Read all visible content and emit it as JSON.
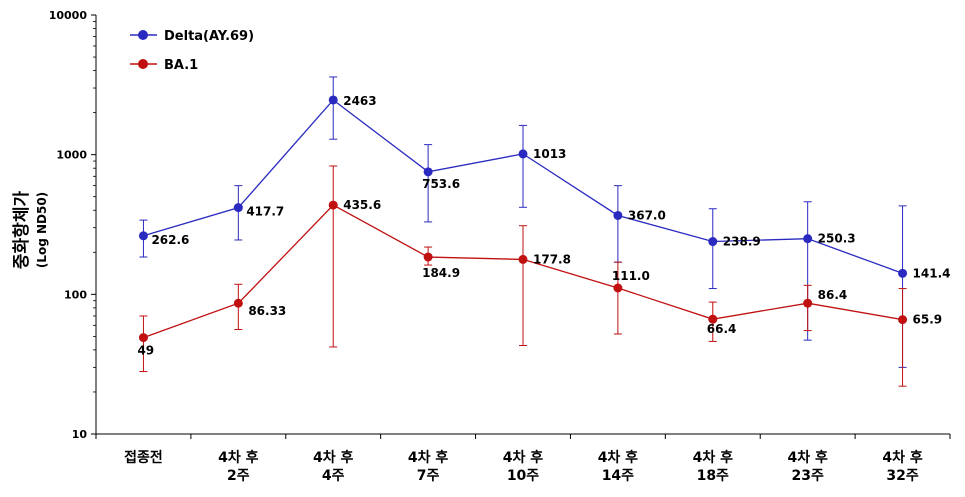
{
  "chart_data": {
    "type": "line",
    "yscale": "log",
    "ylim": [
      10,
      10000
    ],
    "yticks": [
      10,
      100,
      1000,
      10000
    ],
    "ytick_labels": [
      "10",
      "100",
      "1000",
      "10000"
    ],
    "ylabel": "중화항체가",
    "ylabel_sub": "(Log ND50)",
    "categories": [
      [
        "접종전",
        ""
      ],
      [
        "4차 후",
        "2주"
      ],
      [
        "4차 후",
        "4주"
      ],
      [
        "4차 후",
        "7주"
      ],
      [
        "4차 후",
        "10주"
      ],
      [
        "4차 후",
        "14주"
      ],
      [
        "4차 후",
        "18주"
      ],
      [
        "4차 후",
        "23주"
      ],
      [
        "4차 후",
        "32주"
      ]
    ],
    "legend_position": "top-left",
    "series": [
      {
        "name": "Delta(AY.69)",
        "color": "#2a2ac0",
        "values": [
          262.6,
          417.7,
          2463,
          753.6,
          1013,
          367.0,
          238.9,
          250.3,
          141.4
        ],
        "labels": [
          "262.6",
          "417.7",
          "2463",
          "753.6",
          "1013",
          "367.0",
          "238.9",
          "250.3",
          "141.4"
        ],
        "err_high": [
          340,
          600,
          3600,
          1180,
          1620,
          600,
          410,
          460,
          430
        ],
        "err_low": [
          185,
          245,
          1290,
          330,
          420,
          170,
          110,
          47,
          30
        ]
      },
      {
        "name": "BA.1",
        "color": "#c01010",
        "values": [
          49,
          86.33,
          435.6,
          184.9,
          177.8,
          111.0,
          66.4,
          86.4,
          65.9
        ],
        "labels": [
          "49",
          "86.33",
          "435.6",
          "184.9",
          "177.8",
          "111.0",
          "66.4",
          "86.4",
          "65.9"
        ],
        "err_high": [
          70,
          118,
          830,
          218,
          310,
          170,
          88,
          116,
          110
        ],
        "err_low": [
          28,
          56,
          42,
          162,
          43,
          52,
          46,
          55,
          22
        ]
      }
    ]
  }
}
